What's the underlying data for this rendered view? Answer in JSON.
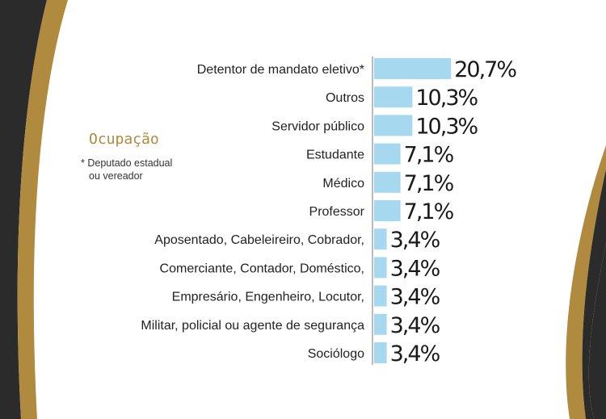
{
  "legend": {
    "title": "Ocupação",
    "note_line1": "* Deputado estadual",
    "note_line2": "ou vereador"
  },
  "colors": {
    "bar": "#a6d8f0",
    "axis": "#bbbbbb",
    "gold": "#b08a3e",
    "dark": "#2b2b2b"
  },
  "chart_data": {
    "type": "bar",
    "orientation": "horizontal",
    "categories": [
      "Detentor de mandato eletivo*",
      "Outros",
      "Servidor público",
      "Estudante",
      "Médico",
      "Professor",
      "Aposentado, Cabeleireiro, Cobrador,",
      "Comerciante, Contador, Doméstico,",
      "Empresário, Engenheiro, Locutor,",
      "Militar, policial ou agente de segurança",
      "Sociólogo"
    ],
    "values": [
      20.7,
      10.3,
      10.3,
      7.1,
      7.1,
      7.1,
      3.4,
      3.4,
      3.4,
      3.4,
      3.4
    ],
    "value_labels": [
      "20,7%",
      "10,3%",
      "10,3%",
      "7,1%",
      "7,1%",
      "7,1%",
      "3,4%",
      "3,4%",
      "3,4%",
      "3,4%",
      "3,4%"
    ],
    "title": "",
    "xlabel": "",
    "ylabel": "",
    "xlim": [
      0,
      25
    ],
    "grid": false
  }
}
